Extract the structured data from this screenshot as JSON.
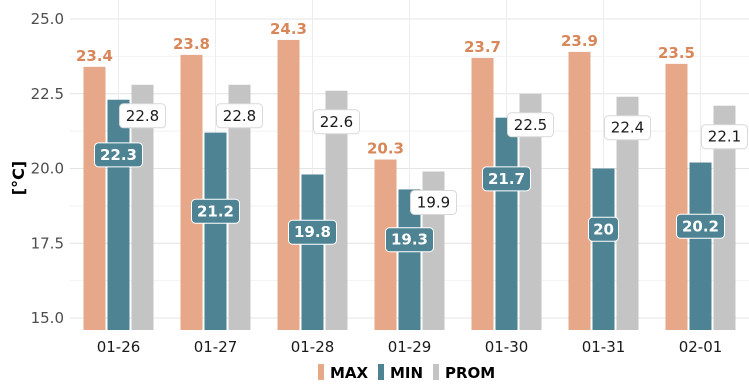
{
  "chart_data": {
    "type": "bar",
    "categories": [
      "01-26",
      "01-27",
      "01-28",
      "01-29",
      "01-30",
      "01-31",
      "02-01"
    ],
    "series": [
      {
        "name": "MAX",
        "values": [
          23.4,
          23.8,
          24.3,
          20.3,
          23.7,
          23.9,
          23.5
        ],
        "labels": [
          "23.4",
          "23.8",
          "24.3",
          "20.3",
          "23.7",
          "23.9",
          "23.5"
        ],
        "color": "#E6A888",
        "label_color": "#D8875A"
      },
      {
        "name": "MIN",
        "values": [
          22.3,
          21.2,
          19.8,
          19.3,
          21.7,
          20,
          20.2
        ],
        "labels": [
          "22.3",
          "21.2",
          "19.8",
          "19.3",
          "21.7",
          "20",
          "20.2"
        ],
        "color": "#4E8394"
      },
      {
        "name": "PROM",
        "values": [
          22.8,
          22.8,
          22.6,
          19.9,
          22.5,
          22.4,
          22.1
        ],
        "labels": [
          "22.8",
          "22.8",
          "22.6",
          "19.9",
          "22.5",
          "22.4",
          "22.1"
        ],
        "color": "#C4C4C4"
      }
    ],
    "ylabel": "[°C]",
    "ylim": [
      14.8,
      25.0
    ],
    "yticks": [
      "15.0",
      "17.5",
      "20.0",
      "22.5",
      "25.0"
    ],
    "grid": true,
    "legend_position": "bottom"
  }
}
